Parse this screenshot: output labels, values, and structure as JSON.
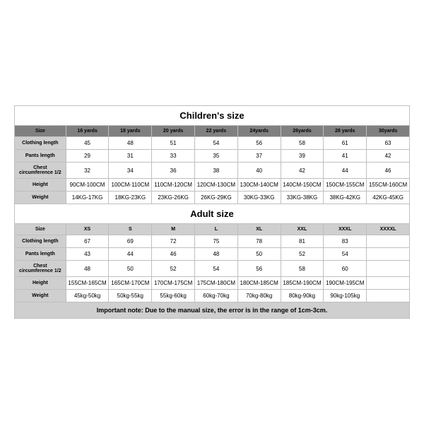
{
  "colors": {
    "border": "#bfbfbf",
    "header_bg": "#808080",
    "shade_bg": "#cfcfcf",
    "text": "#000000",
    "background": "#ffffff"
  },
  "children": {
    "title": "Children's size",
    "headers": [
      "Size",
      "16 yards",
      "18 yards",
      "20 yards",
      "22 yards",
      "24yards",
      "26yards",
      "28 yards",
      "30yards"
    ],
    "rows": [
      {
        "label": "Clothing length",
        "values": [
          "45",
          "48",
          "51",
          "54",
          "56",
          "58",
          "61",
          "63"
        ]
      },
      {
        "label": "Pants length",
        "values": [
          "29",
          "31",
          "33",
          "35",
          "37",
          "39",
          "41",
          "42"
        ]
      },
      {
        "label": "Chest circumference 1/2",
        "values": [
          "32",
          "34",
          "36",
          "38",
          "40",
          "42",
          "44",
          "46"
        ]
      },
      {
        "label": "Height",
        "values": [
          "90CM-100CM",
          "100CM-110CM",
          "110CM-120CM",
          "120CM-130CM",
          "130CM-140CM",
          "140CM-150CM",
          "150CM-155CM",
          "155CM-160CM"
        ]
      },
      {
        "label": "Weight",
        "values": [
          "14KG-17KG",
          "18KG-23KG",
          "23KG-26KG",
          "26KG-29KG",
          "30KG-33KG",
          "33KG-38KG",
          "38KG-42KG",
          "42KG-45KG"
        ]
      }
    ]
  },
  "adult": {
    "title": "Adult size",
    "headers": [
      "Size",
      "XS",
      "S",
      "M",
      "L",
      "XL",
      "XXL",
      "XXXL",
      "XXXXL"
    ],
    "rows": [
      {
        "label": "Clothing length",
        "values": [
          "67",
          "69",
          "72",
          "75",
          "78",
          "81",
          "83",
          ""
        ]
      },
      {
        "label": "Pants length",
        "values": [
          "43",
          "44",
          "46",
          "48",
          "50",
          "52",
          "54",
          ""
        ]
      },
      {
        "label": "Chest circumference 1/2",
        "values": [
          "48",
          "50",
          "52",
          "54",
          "56",
          "58",
          "60",
          ""
        ]
      },
      {
        "label": "Height",
        "values": [
          "155CM-165CM",
          "165CM-170CM",
          "170CM-175CM",
          "175CM-180CM",
          "180CM-185CM",
          "185CM-190CM",
          "190CM-195CM",
          ""
        ]
      },
      {
        "label": "Weight",
        "values": [
          "45kg-50kg",
          "50kg-55kg",
          "55kg-60kg",
          "60kg-70kg",
          "70kg-80kg",
          "80kg-90kg",
          "90kg-105kg",
          ""
        ]
      }
    ]
  },
  "note": "Important note: Due to the manual size, the error is in the range of 1cm-3cm."
}
